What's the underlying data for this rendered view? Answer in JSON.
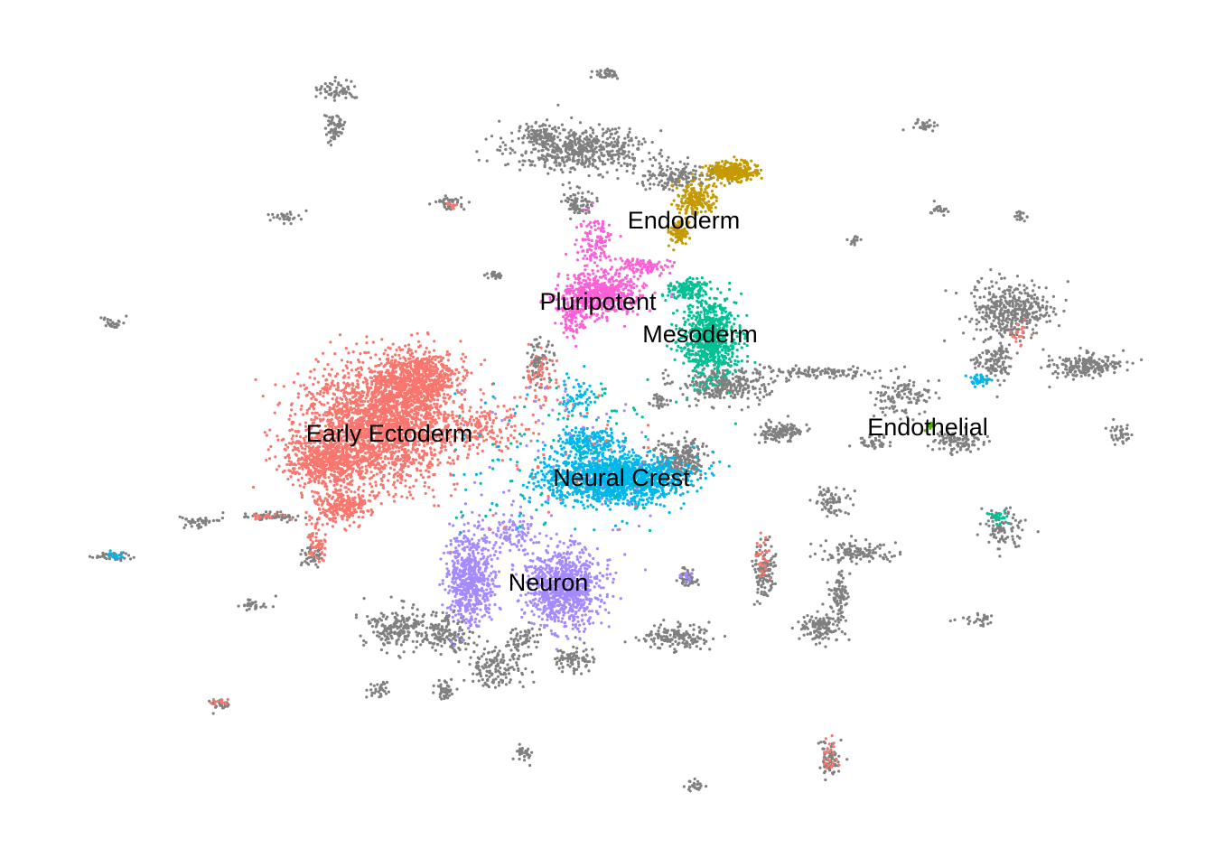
{
  "chart_data": {
    "type": "scatter",
    "title": "",
    "xlabel": "",
    "ylabel": "",
    "axes_visible": false,
    "grid": false,
    "legend": "none",
    "background_color": "#808080",
    "labels": [
      {
        "text": "Endoderm",
        "series": "endoderm"
      },
      {
        "text": "Pluripotent",
        "series": "pluripotent"
      },
      {
        "text": "Mesoderm",
        "series": "mesoderm"
      },
      {
        "text": "Early Ectoderm",
        "series": "early-ectoderm"
      },
      {
        "text": "Neural Crest",
        "series": "neural-crest"
      },
      {
        "text": "Neuron",
        "series": "neuron"
      },
      {
        "text": "Endothelial",
        "series": "endothelial"
      }
    ],
    "series": [
      {
        "id": "early-ectoderm",
        "color": "#F8766D"
      },
      {
        "id": "endoderm",
        "color": "#C49A00"
      },
      {
        "id": "endothelial",
        "color": "#53B400"
      },
      {
        "id": "mesoderm",
        "color": "#00C094"
      },
      {
        "id": "neural-crest",
        "color": "#00B6EB"
      },
      {
        "id": "neuron",
        "color": "#A58AFF"
      },
      {
        "id": "pluripotent",
        "color": "#FB61D7"
      }
    ]
  }
}
